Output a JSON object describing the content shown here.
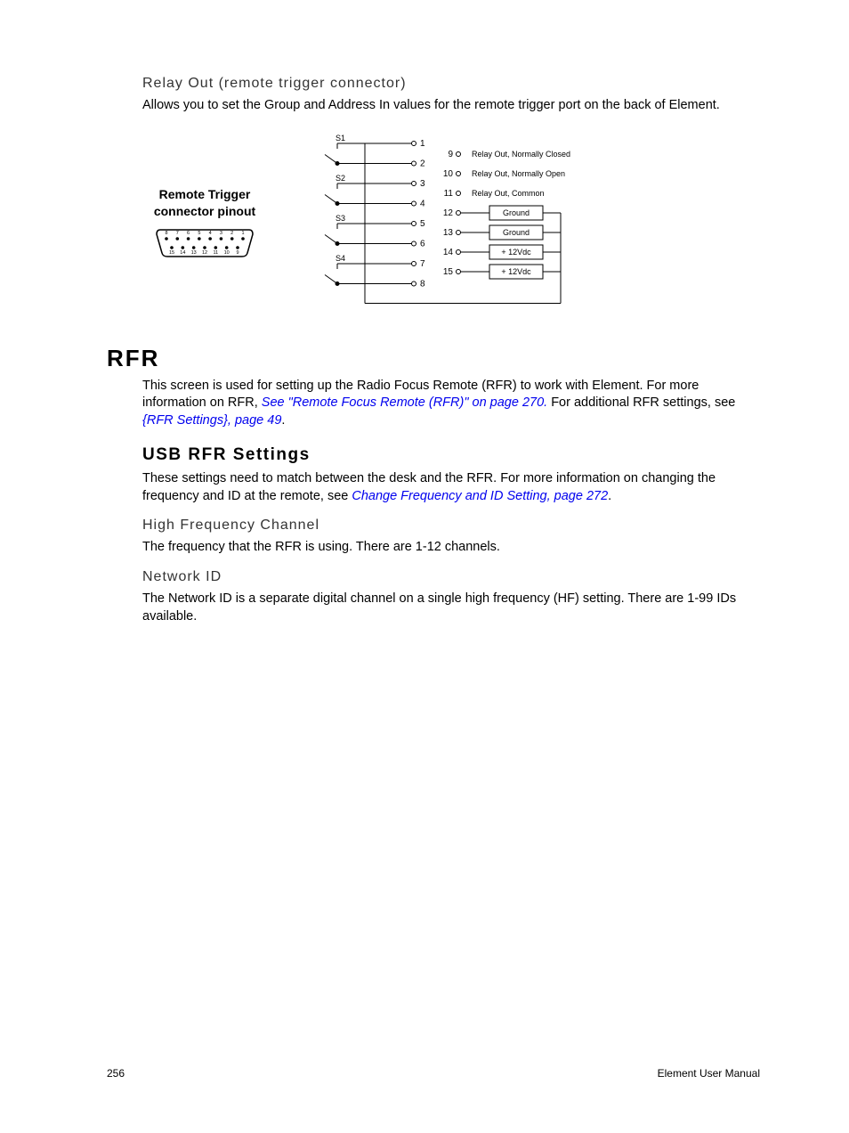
{
  "section1": {
    "heading": "Relay Out (remote trigger connector)",
    "body": "Allows you to set the Group and Address In values for the remote trigger port on the back of Element."
  },
  "diagram": {
    "pinout_title_l1": "Remote Trigger",
    "pinout_title_l2": "connector pinout",
    "top_pins": [
      "8",
      "7",
      "6",
      "5",
      "4",
      "3",
      "2",
      "1"
    ],
    "bottom_pins": [
      "15",
      "14",
      "13",
      "12",
      "11",
      "10",
      "9"
    ],
    "switches": [
      "S1",
      "S2",
      "S3",
      "S4"
    ],
    "left_pins": [
      "1",
      "2",
      "3",
      "4",
      "5",
      "6",
      "7",
      "8"
    ],
    "right_pins": [
      {
        "n": "9",
        "label": "Relay Out, Normally Closed",
        "boxed": false
      },
      {
        "n": "10",
        "label": "Relay Out, Normally Open",
        "boxed": false
      },
      {
        "n": "11",
        "label": "Relay Out, Common",
        "boxed": false
      },
      {
        "n": "12",
        "label": "Ground",
        "boxed": true
      },
      {
        "n": "13",
        "label": "Ground",
        "boxed": true
      },
      {
        "n": "14",
        "label": "+ 12Vdc",
        "boxed": true
      },
      {
        "n": "15",
        "label": "+ 12Vdc",
        "boxed": true
      }
    ],
    "stroke": "#000000",
    "font_small": 9,
    "font_pin": 10
  },
  "rfr": {
    "heading": "RFR",
    "intro_pre": "This screen is used for setting up the Radio Focus Remote (RFR) to work with Element. For more information on RFR, ",
    "link1": "See \"Remote Focus Remote (RFR)\" on page 270.",
    "intro_mid": " For additional RFR settings, see ",
    "link2": "{RFR Settings}, page 49",
    "intro_post": "."
  },
  "usb": {
    "heading": "USB RFR Settings",
    "body_pre": "These settings need to match between the desk and the RFR. For more information on changing the frequency and ID at the remote, see ",
    "link": "Change Frequency and ID Setting, page 272",
    "body_post": "."
  },
  "hfc": {
    "heading": "High Frequency Channel",
    "body": "The frequency that the RFR is using. There are 1-12 channels."
  },
  "nid": {
    "heading": "Network ID",
    "body": "The Network ID is a separate digital channel on a single high frequency (HF) setting. There are 1-99 IDs available."
  },
  "footer": {
    "page": "256",
    "manual": "Element User Manual"
  }
}
